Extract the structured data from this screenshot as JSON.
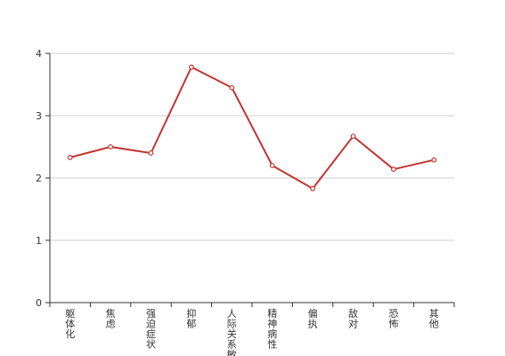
{
  "chart_data": {
    "type": "line",
    "categories": [
      "躯体化",
      "焦虑",
      "强迫症状",
      "抑郁",
      "人际关系敏感",
      "精神病性",
      "偏执",
      "敌对",
      "恐怖",
      "其他"
    ],
    "series": [
      {
        "values": [
          2.33,
          2.5,
          2.4,
          3.78,
          3.45,
          2.2,
          1.83,
          2.67,
          2.14,
          2.29
        ],
        "color": "#c23531"
      }
    ],
    "ylim": [
      0,
      4
    ],
    "yticks": [
      0,
      1,
      2,
      3,
      4
    ],
    "grid": true,
    "xlabel_orientation": "vertical",
    "title": "",
    "xlabel": "",
    "ylabel": ""
  }
}
